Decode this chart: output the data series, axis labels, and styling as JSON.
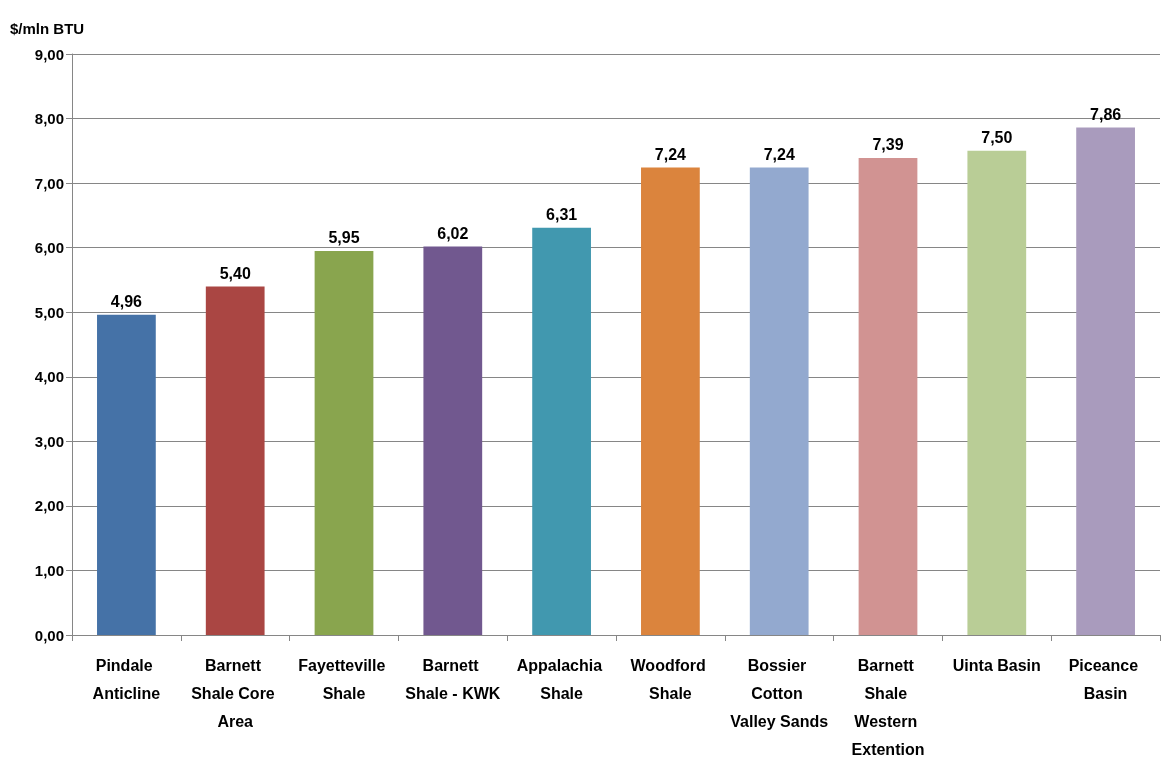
{
  "chart_data": {
    "type": "bar",
    "ylabel": "$/mln BTU",
    "categories": [
      "Pindale Anticline",
      "Barnett Shale Core Area",
      "Fayetteville Shale",
      "Barnett Shale - KWK",
      "Appalachia Shale",
      "Woodford Shale",
      "Bossier Cotton Valley Sands",
      "Barnett Shale Western Extention",
      "Uinta Basin",
      "Piceance Basin"
    ],
    "values": [
      4.96,
      5.4,
      5.95,
      6.02,
      6.31,
      7.24,
      7.24,
      7.39,
      7.5,
      7.86
    ],
    "colors": [
      "#4572a7",
      "#aa4643",
      "#89a54e",
      "#71588f",
      "#4198af",
      "#db843d",
      "#93a9cf",
      "#d19392",
      "#b9cd96",
      "#a99bbd"
    ],
    "value_labels": [
      "4,96",
      "5,40",
      "5,95",
      "6,02",
      "6,31",
      "7,24",
      "7,24",
      "7,39",
      "7,50",
      "7,86"
    ],
    "ylim": [
      0,
      9
    ],
    "yticks": [
      {
        "value": 0,
        "label": "0,00"
      },
      {
        "value": 1,
        "label": "1,00"
      },
      {
        "value": 2,
        "label": "2,00"
      },
      {
        "value": 3,
        "label": "3,00"
      },
      {
        "value": 4,
        "label": "4,00"
      },
      {
        "value": 5,
        "label": "5,00"
      },
      {
        "value": 6,
        "label": "6,00"
      },
      {
        "value": 7,
        "label": "7,00"
      },
      {
        "value": 8,
        "label": "8,00"
      },
      {
        "value": 9,
        "label": "9,00"
      }
    ],
    "grid": "y"
  }
}
